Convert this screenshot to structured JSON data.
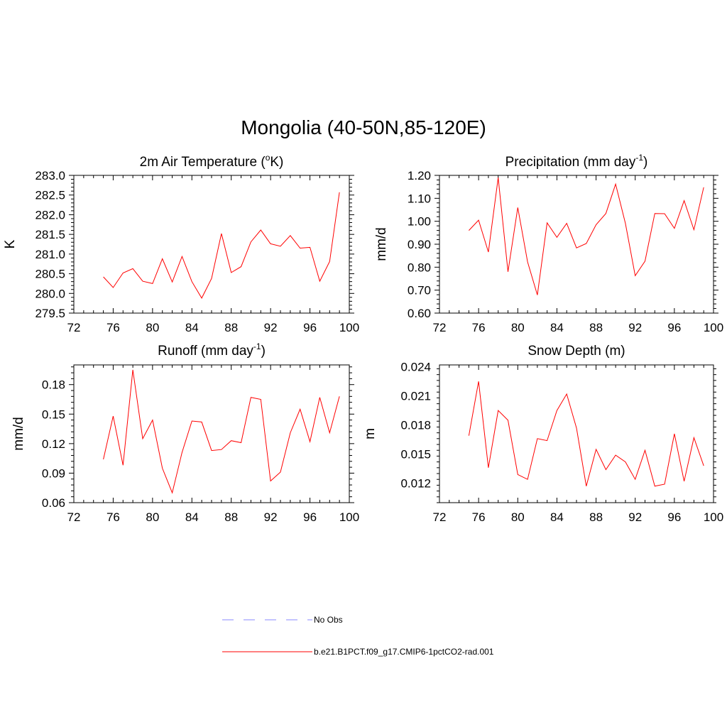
{
  "title": "Mongolia (40-50N,85-120E)",
  "colors": {
    "model": "#ff0000",
    "obs": "#a0a0ff"
  },
  "legend": [
    {
      "label": "No Obs",
      "style": "dashed",
      "color": "#a0a0ff"
    },
    {
      "label": "b.e21.B1PCT.f09_g17.CMIP6-1pctCO2-rad.001",
      "style": "solid",
      "color": "#ff0000"
    }
  ],
  "chart_data": [
    {
      "type": "line",
      "title": "2m Air Temperature (",
      "title_sup": "o",
      "title_end": "K)",
      "ylabel": "K",
      "xlim": [
        72,
        100
      ],
      "ylim": [
        279.5,
        283.0
      ],
      "xticks": [
        "72",
        "76",
        "80",
        "84",
        "88",
        "92",
        "96",
        "100"
      ],
      "yticks": [
        "279.5",
        "280.0",
        "280.5",
        "281.0",
        "281.5",
        "282.0",
        "282.5",
        "283.0"
      ],
      "x": [
        75,
        76,
        77,
        78,
        79,
        80,
        81,
        82,
        83,
        84,
        85,
        86,
        87,
        88,
        89,
        90,
        91,
        92,
        93,
        94,
        95,
        96,
        97,
        98,
        99
      ],
      "series": [
        {
          "values": [
            280.42,
            280.15,
            280.52,
            280.63,
            280.31,
            280.25,
            280.88,
            280.29,
            280.94,
            280.3,
            279.88,
            280.38,
            281.52,
            280.53,
            280.68,
            281.31,
            281.61,
            281.26,
            281.2,
            281.47,
            281.15,
            281.17,
            280.31,
            280.81,
            282.57
          ]
        }
      ]
    },
    {
      "type": "line",
      "title": "Precipitation (mm day",
      "title_sup": "-1",
      "title_end": ")",
      "ylabel": "mm/d",
      "xlim": [
        72,
        100
      ],
      "ylim": [
        0.6,
        1.2
      ],
      "xticks": [
        "72",
        "76",
        "80",
        "84",
        "88",
        "92",
        "96",
        "100"
      ],
      "yticks": [
        "0.60",
        "0.70",
        "0.80",
        "0.90",
        "1.00",
        "1.10",
        "1.20"
      ],
      "x": [
        75,
        76,
        77,
        78,
        79,
        80,
        81,
        82,
        83,
        84,
        85,
        86,
        87,
        88,
        89,
        90,
        91,
        92,
        93,
        94,
        95,
        96,
        97,
        98,
        99
      ],
      "series": [
        {
          "values": [
            0.96,
            1.005,
            0.866,
            1.19,
            0.78,
            1.06,
            0.823,
            0.679,
            0.993,
            0.93,
            0.991,
            0.884,
            0.903,
            0.985,
            1.034,
            1.162,
            0.991,
            0.763,
            0.826,
            1.034,
            1.033,
            0.969,
            1.09,
            0.963,
            1.148
          ]
        }
      ]
    },
    {
      "type": "line",
      "title": "Runoff (mm day",
      "title_sup": "-1",
      "title_end": ")",
      "ylabel": "mm/d",
      "xlim": [
        72,
        100
      ],
      "ylim": [
        0.06,
        0.2
      ],
      "xticks": [
        "72",
        "76",
        "80",
        "84",
        "88",
        "92",
        "96",
        "100"
      ],
      "yticks": [
        "0.06",
        "0.09",
        "0.12",
        "0.15",
        "0.18"
      ],
      "x": [
        75,
        76,
        77,
        78,
        79,
        80,
        81,
        82,
        83,
        84,
        85,
        86,
        87,
        88,
        89,
        90,
        91,
        92,
        93,
        94,
        95,
        96,
        97,
        98,
        99
      ],
      "series": [
        {
          "values": [
            0.104,
            0.148,
            0.098,
            0.195,
            0.125,
            0.144,
            0.095,
            0.07,
            0.111,
            0.143,
            0.142,
            0.113,
            0.114,
            0.123,
            0.121,
            0.167,
            0.165,
            0.082,
            0.091,
            0.131,
            0.155,
            0.122,
            0.167,
            0.131,
            0.168
          ]
        }
      ]
    },
    {
      "type": "line",
      "title": "Snow Depth (m)",
      "title_sup": "",
      "title_end": "",
      "ylabel": "m",
      "xlim": [
        72,
        100
      ],
      "ylim": [
        0.01,
        0.0242
      ],
      "xticks": [
        "72",
        "76",
        "80",
        "84",
        "88",
        "92",
        "96",
        "100"
      ],
      "yticks": [
        "0.012",
        "0.015",
        "0.018",
        "0.021",
        "0.024"
      ],
      "x": [
        75,
        76,
        77,
        78,
        79,
        80,
        81,
        82,
        83,
        84,
        85,
        86,
        87,
        88,
        89,
        90,
        91,
        92,
        93,
        94,
        95,
        96,
        97,
        98,
        99
      ],
      "series": [
        {
          "values": [
            0.0169,
            0.0225,
            0.0136,
            0.0195,
            0.0185,
            0.0129,
            0.0124,
            0.0166,
            0.0164,
            0.0195,
            0.0212,
            0.0177,
            0.0117,
            0.0155,
            0.0134,
            0.0149,
            0.0142,
            0.0124,
            0.0154,
            0.0117,
            0.0119,
            0.0171,
            0.0122,
            0.0167,
            0.0138
          ]
        }
      ]
    }
  ]
}
